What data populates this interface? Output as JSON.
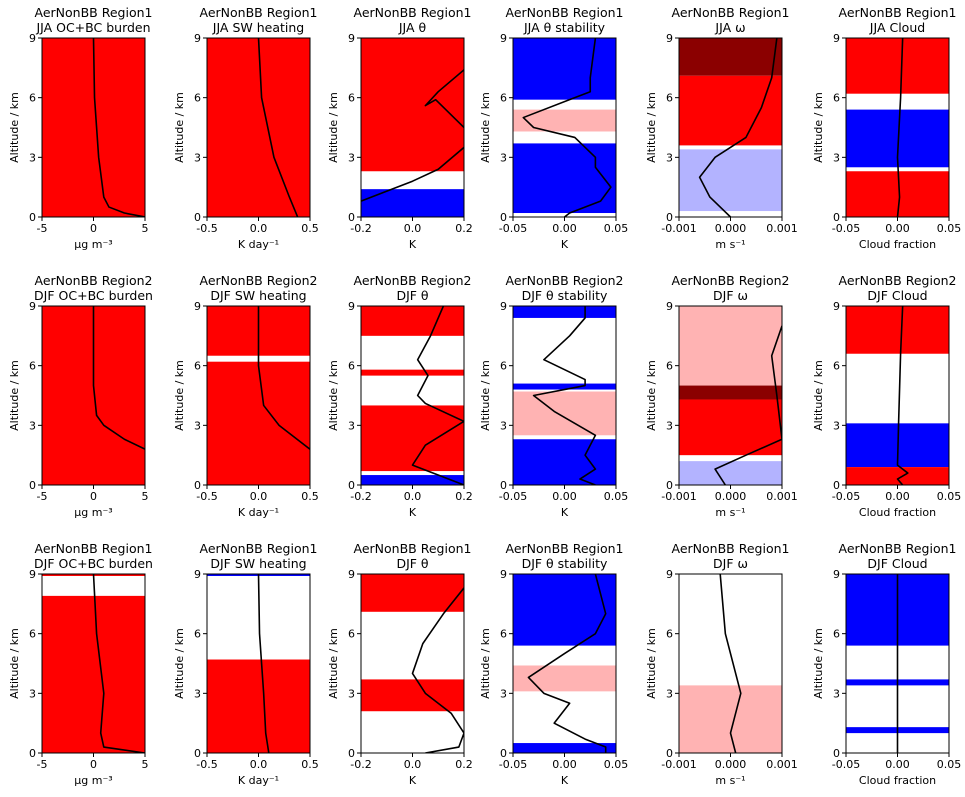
{
  "chart_data": [
    {
      "type": "line",
      "title": "AerNonBB Region1",
      "subtitle": "JJA OC+BC burden",
      "xlabel": "μg m⁻³",
      "ylabel": "Altitude / km",
      "xlim": [
        -5,
        5
      ],
      "ylim": [
        0,
        9
      ],
      "xticks": [
        -5,
        0,
        5
      ],
      "yticks": [
        0,
        3,
        6,
        9
      ],
      "bands": [
        {
          "from": 0,
          "to": 9,
          "color": "#ff0000"
        }
      ],
      "series": [
        {
          "color": "#000000",
          "x": [
            0,
            0.1,
            0.5,
            1,
            1.5,
            3,
            5
          ],
          "y": [
            9,
            6,
            3,
            1,
            0.5,
            0.2,
            0
          ]
        }
      ]
    },
    {
      "type": "line",
      "title": "AerNonBB Region1",
      "subtitle": "JJA SW heating",
      "xlabel": "K day⁻¹",
      "ylabel": "Altitude / km",
      "xlim": [
        -0.5,
        0.5
      ],
      "ylim": [
        0,
        9
      ],
      "xticks": [
        -0.5,
        {
          "value": 0,
          "label": "0.0"
        },
        0.5
      ],
      "yticks": [
        0,
        3,
        6,
        9
      ],
      "bands": [
        {
          "from": 0,
          "to": 9,
          "color": "#ff0000"
        }
      ],
      "series": [
        {
          "color": "#000000",
          "x": [
            0,
            0.03,
            0.15,
            0.3,
            0.38
          ],
          "y": [
            9,
            6,
            3,
            1,
            0
          ]
        }
      ]
    },
    {
      "type": "line",
      "title": "AerNonBB Region1",
      "subtitle": "JJA θ",
      "xlabel": "K",
      "ylabel": "Altitude / km",
      "xlim": [
        -0.2,
        0.2
      ],
      "ylim": [
        0,
        9
      ],
      "xticks": [
        -0.2,
        {
          "value": 0,
          "label": "0.0"
        },
        0.2
      ],
      "yticks": [
        0,
        3,
        6,
        9
      ],
      "bands": [
        {
          "from": 2.3,
          "to": 9,
          "color": "#ff0000"
        },
        {
          "from": 0,
          "to": 1.4,
          "color": "#0000ff"
        }
      ],
      "series": [
        {
          "color": "#000000",
          "x": [
            0.24,
            0.2,
            0.1,
            0.05,
            0.09,
            0.2,
            0.22,
            0.2,
            0.1,
            0,
            -0.2
          ],
          "y": [
            9,
            7.4,
            6.3,
            5.6,
            5.9,
            4.5,
            3.8,
            3.5,
            2.4,
            1.8,
            0.8
          ]
        }
      ]
    },
    {
      "type": "line",
      "title": "AerNonBB Region1",
      "subtitle": "JJA θ stability",
      "xlabel": "K",
      "ylabel": "Altitude / km",
      "xlim": [
        -0.05,
        0.05
      ],
      "ylim": [
        0,
        9
      ],
      "xticks": [
        -0.05,
        {
          "value": 0,
          "label": "0.00"
        },
        0.05
      ],
      "yticks": [
        0,
        3,
        6,
        9
      ],
      "bands": [
        {
          "from": 5.9,
          "to": 9,
          "color": "#0000ff"
        },
        {
          "from": 4.3,
          "to": 5.4,
          "color": "#ffb3b3"
        },
        {
          "from": 0.2,
          "to": 3.7,
          "color": "#0000ff"
        }
      ],
      "series": [
        {
          "color": "#000000",
          "x": [
            0.03,
            0.025,
            0.025,
            0.01,
            -0.04,
            -0.03,
            0.01,
            0.03,
            0.03,
            0.045,
            0.035,
            0.005,
            0
          ],
          "y": [
            9,
            7,
            6.3,
            6,
            5,
            4.5,
            4,
            3,
            2.5,
            1.5,
            0.8,
            0.2,
            0
          ]
        }
      ]
    },
    {
      "type": "line",
      "title": "AerNonBB Region1",
      "subtitle": "JJA ω",
      "xlabel": "m s⁻¹",
      "ylabel": "Altitude / km",
      "xlim": [
        -0.001,
        0.001
      ],
      "ylim": [
        0,
        9
      ],
      "xticks": [
        -0.001,
        {
          "value": 0,
          "label": "0.000"
        },
        0.001
      ],
      "yticks": [
        0,
        3,
        6,
        9
      ],
      "bands": [
        {
          "from": 7.1,
          "to": 9,
          "color": "#8b0000"
        },
        {
          "from": 3.6,
          "to": 7.1,
          "color": "#ff0000"
        },
        {
          "from": 0.3,
          "to": 3.4,
          "color": "#b3b3ff"
        }
      ],
      "series": [
        {
          "color": "#000000",
          "x": [
            0.0009,
            0.0008,
            0.0006,
            0.0003,
            -0.0003,
            -0.0006,
            -0.0004,
            0
          ],
          "y": [
            9,
            7,
            5.5,
            4,
            3,
            2,
            1,
            0
          ]
        }
      ]
    },
    {
      "type": "line",
      "title": "AerNonBB Region1",
      "subtitle": "JJA Cloud",
      "xlabel": "Cloud fraction",
      "ylabel": "Altitude / km",
      "xlim": [
        -0.05,
        0.05
      ],
      "ylim": [
        0,
        9
      ],
      "xticks": [
        -0.05,
        {
          "value": 0,
          "label": "0.00"
        },
        0.05
      ],
      "yticks": [
        0,
        3,
        6,
        9
      ],
      "bands": [
        {
          "from": 6.2,
          "to": 9,
          "color": "#ff0000"
        },
        {
          "from": 2.5,
          "to": 5.4,
          "color": "#0000ff"
        },
        {
          "from": 0,
          "to": 2.3,
          "color": "#ff0000"
        }
      ],
      "series": [
        {
          "color": "#000000",
          "x": [
            0.005,
            0.003,
            0,
            0.002,
            0
          ],
          "y": [
            9,
            6,
            3,
            1,
            0
          ]
        }
      ]
    },
    {
      "type": "line",
      "title": "AerNonBB Region2",
      "subtitle": "DJF OC+BC burden",
      "xlabel": "μg m⁻³",
      "ylabel": "Altitude / km",
      "xlim": [
        -5,
        5
      ],
      "ylim": [
        0,
        9
      ],
      "xticks": [
        -5,
        0,
        5
      ],
      "yticks": [
        0,
        3,
        6,
        9
      ],
      "bands": [
        {
          "from": 0,
          "to": 9,
          "color": "#ff0000"
        }
      ],
      "series": [
        {
          "color": "#000000",
          "x": [
            0,
            0,
            0.3,
            1,
            3,
            5
          ],
          "y": [
            9,
            5,
            3.5,
            3,
            2.3,
            1.8
          ]
        }
      ]
    },
    {
      "type": "line",
      "title": "AerNonBB Region2",
      "subtitle": "DJF SW heating",
      "xlabel": "K day⁻¹",
      "ylabel": "Altitude / km",
      "xlim": [
        -0.5,
        0.5
      ],
      "ylim": [
        0,
        9
      ],
      "xticks": [
        -0.5,
        {
          "value": 0,
          "label": "0.0"
        },
        0.5
      ],
      "yticks": [
        0,
        3,
        6,
        9
      ],
      "bands": [
        {
          "from": 6.5,
          "to": 9,
          "color": "#ff0000"
        },
        {
          "from": 0,
          "to": 6.2,
          "color": "#ff0000"
        }
      ],
      "series": [
        {
          "color": "#000000",
          "x": [
            0,
            0,
            0.05,
            0.2,
            0.5
          ],
          "y": [
            9,
            6,
            4,
            3,
            1.8
          ]
        }
      ]
    },
    {
      "type": "line",
      "title": "AerNonBB Region2",
      "subtitle": "DJF θ",
      "xlabel": "K",
      "ylabel": "Altitude / km",
      "xlim": [
        -0.2,
        0.2
      ],
      "ylim": [
        0,
        9
      ],
      "xticks": [
        -0.2,
        {
          "value": 0,
          "label": "0.0"
        },
        0.2
      ],
      "yticks": [
        0,
        3,
        6,
        9
      ],
      "bands": [
        {
          "from": 7.5,
          "to": 9,
          "color": "#ff0000"
        },
        {
          "from": 5.5,
          "to": 5.8,
          "color": "#ff0000"
        },
        {
          "from": 0.7,
          "to": 4,
          "color": "#ff0000"
        },
        {
          "from": 0,
          "to": 0.5,
          "color": "#0000ff"
        }
      ],
      "series": [
        {
          "color": "#000000",
          "x": [
            0.12,
            0.07,
            0.02,
            0.06,
            0.02,
            0.05,
            0.2,
            0.05,
            0,
            0.2
          ],
          "y": [
            9,
            7.5,
            6.3,
            5.5,
            4.5,
            4.1,
            3.2,
            2,
            1,
            0
          ]
        }
      ]
    },
    {
      "type": "line",
      "title": "AerNonBB Region2",
      "subtitle": "DJF θ stability",
      "xlabel": "K",
      "ylabel": "Altitude / km",
      "xlim": [
        -0.05,
        0.05
      ],
      "ylim": [
        0,
        9
      ],
      "xticks": [
        -0.05,
        {
          "value": 0,
          "label": "0.00"
        },
        0.05
      ],
      "yticks": [
        0,
        3,
        6,
        9
      ],
      "bands": [
        {
          "from": 8.4,
          "to": 9,
          "color": "#0000ff"
        },
        {
          "from": 4.8,
          "to": 5.1,
          "color": "#0000ff"
        },
        {
          "from": 2.5,
          "to": 4.7,
          "color": "#ffb3b3"
        },
        {
          "from": 0,
          "to": 2.3,
          "color": "#0000ff"
        }
      ],
      "series": [
        {
          "color": "#000000",
          "x": [
            0.02,
            0.02,
            0.005,
            -0.02,
            0.02,
            0.02,
            -0.03,
            -0.01,
            0.03,
            0.02,
            0.03,
            0.015,
            0.03
          ],
          "y": [
            9,
            8.4,
            7.5,
            6.3,
            5.3,
            5,
            4.5,
            3.7,
            2.5,
            1.5,
            0.8,
            0.3,
            0
          ]
        }
      ]
    },
    {
      "type": "line",
      "title": "AerNonBB Region2",
      "subtitle": "DJF ω",
      "xlabel": "m s⁻¹",
      "ylabel": "Altitude / km",
      "xlim": [
        -0.001,
        0.001
      ],
      "ylim": [
        0,
        9
      ],
      "xticks": [
        -0.001,
        {
          "value": 0,
          "label": "0.000"
        },
        0.001
      ],
      "yticks": [
        0,
        3,
        6,
        9
      ],
      "bands": [
        {
          "from": 5,
          "to": 9,
          "color": "#ffb3b3"
        },
        {
          "from": 4.3,
          "to": 5,
          "color": "#8b0000"
        },
        {
          "from": 1.5,
          "to": 4.3,
          "color": "#ff0000"
        },
        {
          "from": 0,
          "to": 1.2,
          "color": "#b3b3ff"
        }
      ],
      "series": [
        {
          "color": "#000000",
          "x": [
            0.001,
            0.0008,
            0.0009,
            0.001,
            0.0003,
            -0.0003,
            -0.0001
          ],
          "y": [
            8,
            6.5,
            4.5,
            2.3,
            1.5,
            0.8,
            0
          ]
        }
      ]
    },
    {
      "type": "line",
      "title": "AerNonBB Region2",
      "subtitle": "DJF Cloud",
      "xlabel": "Cloud fraction",
      "ylabel": "Altitude / km",
      "xlim": [
        -0.05,
        0.05
      ],
      "ylim": [
        0,
        9
      ],
      "xticks": [
        -0.05,
        {
          "value": 0,
          "label": "0.00"
        },
        0.05
      ],
      "yticks": [
        0,
        3,
        6,
        9
      ],
      "bands": [
        {
          "from": 6.6,
          "to": 9,
          "color": "#ff0000"
        },
        {
          "from": 0.9,
          "to": 3.1,
          "color": "#0000ff"
        },
        {
          "from": 0,
          "to": 0.9,
          "color": "#ff0000"
        }
      ],
      "series": [
        {
          "color": "#000000",
          "x": [
            0.005,
            0.003,
            0.001,
            0,
            0.01,
            0,
            0.005
          ],
          "y": [
            9,
            6.6,
            3,
            1,
            0.6,
            0.3,
            0
          ]
        }
      ]
    },
    {
      "type": "line",
      "title": "AerNonBB Region1",
      "subtitle": "DJF OC+BC burden",
      "xlabel": "μg m⁻³",
      "ylabel": "Altitude / km",
      "xlim": [
        -5,
        5
      ],
      "ylim": [
        0,
        9
      ],
      "xticks": [
        -5,
        0,
        5
      ],
      "yticks": [
        0,
        3,
        6,
        9
      ],
      "bands": [
        {
          "from": 8.9,
          "to": 9,
          "color": "#ff0000"
        },
        {
          "from": 0,
          "to": 7.9,
          "color": "#ff0000"
        }
      ],
      "series": [
        {
          "color": "#000000",
          "x": [
            0,
            0.3,
            1,
            0.7,
            1,
            5
          ],
          "y": [
            9,
            6,
            3,
            1,
            0.3,
            0
          ]
        }
      ]
    },
    {
      "type": "line",
      "title": "AerNonBB Region1",
      "subtitle": "DJF SW heating",
      "xlabel": "K day⁻¹",
      "ylabel": "Altitude / km",
      "xlim": [
        -0.5,
        0.5
      ],
      "ylim": [
        0,
        9
      ],
      "xticks": [
        -0.5,
        {
          "value": 0,
          "label": "0.0"
        },
        0.5
      ],
      "yticks": [
        0,
        3,
        6,
        9
      ],
      "bands": [
        {
          "from": 8.9,
          "to": 9,
          "color": "#0000ff"
        },
        {
          "from": 0,
          "to": 4.7,
          "color": "#ff0000"
        }
      ],
      "series": [
        {
          "color": "#000000",
          "x": [
            0,
            0.01,
            0.05,
            0.07,
            0.1
          ],
          "y": [
            9,
            6,
            3,
            1,
            0
          ]
        }
      ]
    },
    {
      "type": "line",
      "title": "AerNonBB Region1",
      "subtitle": "DJF θ",
      "xlabel": "K",
      "ylabel": "Altitude / km",
      "xlim": [
        -0.2,
        0.2
      ],
      "ylim": [
        0,
        9
      ],
      "xticks": [
        -0.2,
        {
          "value": 0,
          "label": "0.0"
        },
        0.2
      ],
      "yticks": [
        0,
        3,
        6,
        9
      ],
      "bands": [
        {
          "from": 7.1,
          "to": 9,
          "color": "#ff0000"
        },
        {
          "from": 2.1,
          "to": 3.7,
          "color": "#ff0000"
        }
      ],
      "series": [
        {
          "color": "#000000",
          "x": [
            0.2,
            0.12,
            0.04,
            0,
            0.05,
            0.15,
            0.2,
            0.18,
            0.05
          ],
          "y": [
            8.3,
            7,
            5.5,
            4,
            3,
            2,
            1,
            0.3,
            0
          ]
        }
      ]
    },
    {
      "type": "line",
      "title": "AerNonBB Region1",
      "subtitle": "DJF θ stability",
      "xlabel": "K",
      "ylabel": "Altitude / km",
      "xlim": [
        -0.05,
        0.05
      ],
      "ylim": [
        0,
        9
      ],
      "xticks": [
        -0.05,
        {
          "value": 0,
          "label": "0.00"
        },
        0.05
      ],
      "yticks": [
        0,
        3,
        6,
        9
      ],
      "bands": [
        {
          "from": 5.4,
          "to": 9,
          "color": "#0000ff"
        },
        {
          "from": 3.1,
          "to": 4.4,
          "color": "#ffb3b3"
        },
        {
          "from": 0,
          "to": 0.5,
          "color": "#0000ff"
        }
      ],
      "series": [
        {
          "color": "#000000",
          "x": [
            0.03,
            0.04,
            0.03,
            0,
            -0.035,
            -0.02,
            0.005,
            -0.01,
            0.02,
            0.04,
            0.04
          ],
          "y": [
            9,
            7,
            6,
            5,
            3.8,
            3,
            2.5,
            1.5,
            0.7,
            0.3,
            0
          ]
        }
      ]
    },
    {
      "type": "line",
      "title": "AerNonBB Region1",
      "subtitle": "DJF ω",
      "xlabel": "m s⁻¹",
      "ylabel": "Altitude / km",
      "xlim": [
        -0.001,
        0.001
      ],
      "ylim": [
        0,
        9
      ],
      "xticks": [
        -0.001,
        {
          "value": 0,
          "label": "0.000"
        },
        0.001
      ],
      "yticks": [
        0,
        3,
        6,
        9
      ],
      "bands": [
        {
          "from": 0,
          "to": 3.4,
          "color": "#ffb3b3"
        }
      ],
      "series": [
        {
          "color": "#000000",
          "x": [
            -0.0002,
            -0.0001,
            0.0002,
            0,
            0.0001
          ],
          "y": [
            9,
            6,
            3,
            1,
            0
          ]
        }
      ]
    },
    {
      "type": "line",
      "title": "AerNonBB Region1",
      "subtitle": "DJF Cloud",
      "xlabel": "Cloud fraction",
      "ylabel": "Altitude / km",
      "xlim": [
        -0.05,
        0.05
      ],
      "ylim": [
        0,
        9
      ],
      "xticks": [
        -0.05,
        {
          "value": 0,
          "label": "0.00"
        },
        0.05
      ],
      "yticks": [
        0,
        3,
        6,
        9
      ],
      "bands": [
        {
          "from": 5.4,
          "to": 9,
          "color": "#0000ff"
        },
        {
          "from": 3.4,
          "to": 3.7,
          "color": "#0000ff"
        },
        {
          "from": 1,
          "to": 1.3,
          "color": "#0000ff"
        }
      ],
      "series": [
        {
          "color": "#000000",
          "x": [
            0,
            0
          ],
          "y": [
            9,
            0
          ]
        }
      ]
    }
  ]
}
